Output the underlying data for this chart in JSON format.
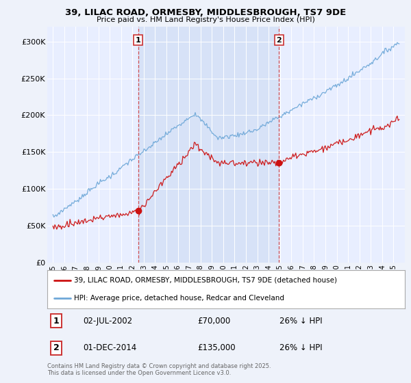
{
  "title1": "39, LILAC ROAD, ORMESBY, MIDDLESBROUGH, TS7 9DE",
  "title2": "Price paid vs. HM Land Registry's House Price Index (HPI)",
  "background_color": "#eef2fa",
  "plot_bg_color": "#e8eeff",
  "red_label": "39, LILAC ROAD, ORMESBY, MIDDLESBROUGH, TS7 9DE (detached house)",
  "blue_label": "HPI: Average price, detached house, Redcar and Cleveland",
  "marker1_date": "02-JUL-2002",
  "marker1_price": "£70,000",
  "marker1_hpi": "26% ↓ HPI",
  "marker1_x": 2002.5,
  "marker1_y": 70000,
  "marker2_date": "01-DEC-2014",
  "marker2_price": "£135,000",
  "marker2_hpi": "26% ↓ HPI",
  "marker2_x": 2014.92,
  "marker2_y": 135000,
  "footer": "Contains HM Land Registry data © Crown copyright and database right 2025.\nThis data is licensed under the Open Government Licence v3.0.",
  "ylim_min": 0,
  "ylim_max": 320000,
  "yticks": [
    0,
    50000,
    100000,
    150000,
    200000,
    250000,
    300000
  ],
  "ytick_labels": [
    "£0",
    "£50K",
    "£100K",
    "£150K",
    "£200K",
    "£250K",
    "£300K"
  ],
  "xmin": 1994.5,
  "xmax": 2026.0
}
